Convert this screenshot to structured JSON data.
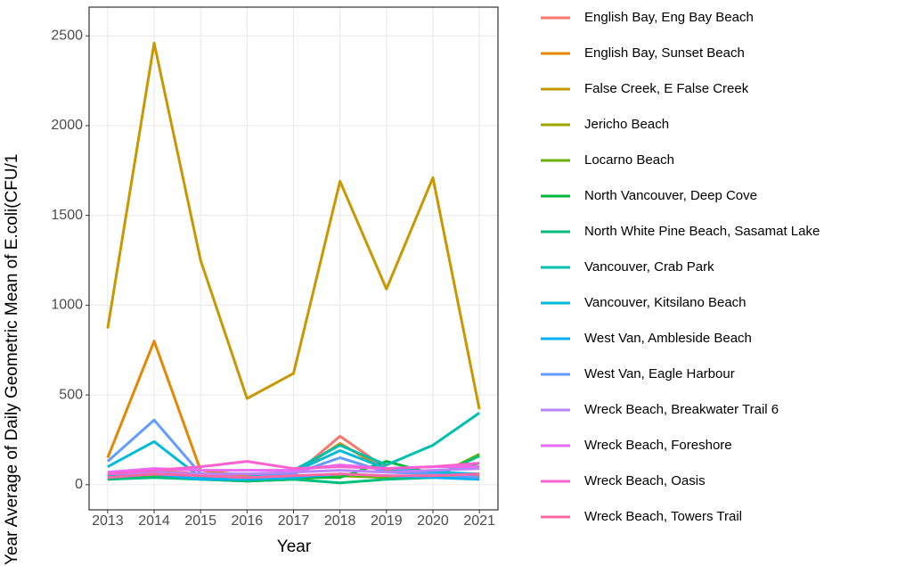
{
  "chart_data": {
    "type": "line",
    "x_label": "Year",
    "y_label": "Year Average of Daily Geometric Mean of E.coli(CFU/1",
    "x": [
      2013,
      2014,
      2015,
      2016,
      2017,
      2018,
      2019,
      2020,
      2021
    ],
    "xlim": [
      2012.6,
      2021.4
    ],
    "xticks": [
      2013,
      2014,
      2015,
      2016,
      2017,
      2018,
      2019,
      2020,
      2021
    ],
    "ylim": [
      -140,
      2660
    ],
    "yticks": [
      0,
      500,
      1000,
      1500,
      2000,
      2500
    ],
    "grid": true,
    "legend": "right",
    "series": [
      {
        "name": "English Bay, Eng Bay Beach",
        "color": "#F8766D",
        "values": [
          60,
          80,
          60,
          40,
          50,
          270,
          90,
          60,
          50
        ]
      },
      {
        "name": "English Bay, Sunset Beach",
        "color": "#E58700",
        "values": [
          150,
          800,
          80,
          50,
          60,
          230,
          80,
          60,
          60
        ]
      },
      {
        "name": "False Creek, E False Creek",
        "color": "#C99800",
        "values": [
          870,
          2460,
          1250,
          480,
          620,
          1690,
          1090,
          1710,
          420
        ]
      },
      {
        "name": "Jericho Beach",
        "color": "#A3A500",
        "values": [
          40,
          60,
          40,
          20,
          30,
          60,
          40,
          50,
          40
        ]
      },
      {
        "name": "Locarno Beach",
        "color": "#6BB100",
        "values": [
          30,
          50,
          30,
          20,
          30,
          50,
          40,
          40,
          170
        ]
      },
      {
        "name": "North Vancouver, Deep Cove",
        "color": "#00BA38",
        "values": [
          50,
          70,
          50,
          30,
          40,
          40,
          130,
          60,
          120
        ]
      },
      {
        "name": "North White Pine Beach, Sasamat Lake",
        "color": "#00BF7D",
        "values": [
          30,
          40,
          30,
          20,
          30,
          10,
          30,
          40,
          160
        ]
      },
      {
        "name": "Vancouver, Crab Park",
        "color": "#00C0AF",
        "values": [
          50,
          60,
          40,
          40,
          80,
          220,
          110,
          220,
          400
        ]
      },
      {
        "name": "Vancouver, Kitsilano Beach",
        "color": "#00BCD8",
        "values": [
          100,
          240,
          40,
          40,
          70,
          190,
          90,
          70,
          60
        ]
      },
      {
        "name": "West Van, Ambleside Beach",
        "color": "#00B0F6",
        "values": [
          40,
          60,
          30,
          30,
          40,
          60,
          50,
          40,
          30
        ]
      },
      {
        "name": "West Van, Eagle Harbour",
        "color": "#619CFF",
        "values": [
          130,
          360,
          60,
          60,
          60,
          150,
          70,
          60,
          40
        ]
      },
      {
        "name": "Wreck Beach, Breakwater Trail 6",
        "color": "#B983FF",
        "values": [
          60,
          70,
          60,
          60,
          70,
          80,
          70,
          80,
          90
        ]
      },
      {
        "name": "Wreck Beach, Foreshore",
        "color": "#E76BF3",
        "values": [
          70,
          90,
          80,
          80,
          80,
          110,
          90,
          100,
          100
        ]
      },
      {
        "name": "Wreck Beach, Oasis",
        "color": "#FD61D1",
        "values": [
          60,
          80,
          100,
          130,
          90,
          100,
          90,
          100,
          120
        ]
      },
      {
        "name": "Wreck Beach, Towers Trail",
        "color": "#FF67A4",
        "values": [
          40,
          60,
          50,
          40,
          50,
          60,
          50,
          50,
          60
        ]
      }
    ]
  }
}
